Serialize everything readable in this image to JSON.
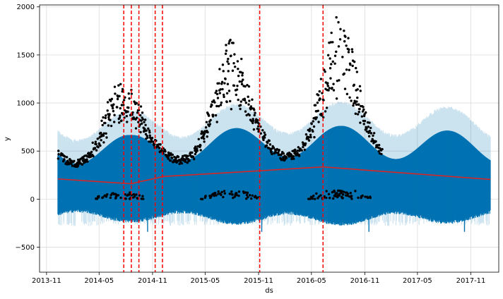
{
  "chart_data": {
    "type": "scatter",
    "title": "",
    "xlabel": "ds",
    "ylabel": "y",
    "ylim": [
      -760,
      2020
    ],
    "x_range": [
      "2013-10-08",
      "2018-02-05"
    ],
    "yticks": [
      -500,
      0,
      500,
      1000,
      1500,
      2000
    ],
    "yticklabels": [
      "−500",
      "0",
      "500",
      "1000",
      "1500",
      "2000"
    ],
    "xticks": [
      "2013-11-01",
      "2014-05-01",
      "2014-11-01",
      "2015-05-01",
      "2015-11-01",
      "2016-05-01",
      "2016-11-01",
      "2017-05-01",
      "2017-11-01"
    ],
    "xticklabels": [
      "2013-11",
      "2014-05",
      "2014-11",
      "2015-05",
      "2015-11",
      "2016-05",
      "2016-11",
      "2017-05",
      "2017-11"
    ],
    "grid": true,
    "legend": "none",
    "forecast_range": [
      "2013-12-10",
      "2018-01-07"
    ],
    "observed_range": [
      "2013-12-10",
      "2016-12-31"
    ],
    "trend": {
      "name": "trend",
      "color": "#d62728",
      "points": [
        [
          "2013-12-10",
          210
        ],
        [
          "2014-07-25",
          165
        ],
        [
          "2014-08-20",
          160
        ],
        [
          "2014-09-15",
          180
        ],
        [
          "2014-11-10",
          215
        ],
        [
          "2014-12-05",
          235
        ],
        [
          "2015-11-05",
          295
        ],
        [
          "2016-06-10",
          335
        ],
        [
          "2018-01-07",
          205
        ]
      ]
    },
    "changepoints": [
      "2014-07-25",
      "2014-08-20",
      "2014-09-15",
      "2014-11-10",
      "2014-12-05",
      "2015-11-05",
      "2016-06-10"
    ],
    "changepoint_color": "#ff0000",
    "seasonal_model": {
      "base_level": 560,
      "yearly_amplitude": 160,
      "yearly_peak_date": "2015-08-15",
      "weekly_low_level": 0,
      "weekly_low_fraction": 0.85,
      "uncertainty_halfwidth": 240,
      "outlier_dips": [
        "2014-10-15",
        "2015-11-12",
        "2016-11-15",
        "2017-10-10"
      ]
    },
    "observed_points": {
      "color": "#000000",
      "high_season_peaks": [
        {
          "center": "2014-07-15",
          "peak": 1250
        },
        {
          "center": "2015-07-25",
          "peak": 1550
        },
        {
          "center": "2016-08-05",
          "peak": 1800
        }
      ],
      "weekend_band": [
        0,
        90
      ]
    },
    "colors": {
      "forecast_line": "#0072B2",
      "uncertainty": "#0072B2",
      "uncertainty_opacity": 0.2,
      "trend": "#d62728",
      "changepoint": "#ff0000"
    }
  }
}
